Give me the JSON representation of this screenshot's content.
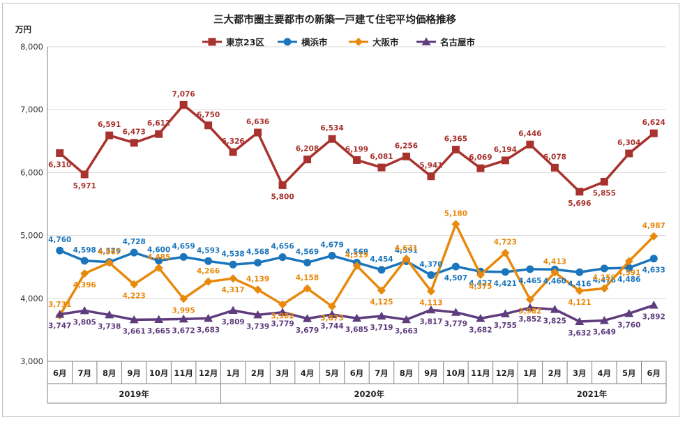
{
  "chart_data": {
    "type": "line",
    "title": "三大都市圏主要都市の新築一戸建て住宅平均価格推移",
    "y_unit": "万円",
    "ylim": [
      3000,
      8000
    ],
    "y_ticks": [
      "3,000",
      "4,000",
      "5,000",
      "6,000",
      "7,000",
      "8,000"
    ],
    "categories": [
      "6月",
      "7月",
      "8月",
      "9月",
      "10月",
      "11月",
      "12月",
      "1月",
      "2月",
      "3月",
      "4月",
      "5月",
      "6月",
      "7月",
      "8月",
      "9月",
      "10月",
      "11月",
      "12月",
      "1月",
      "2月",
      "3月",
      "4月",
      "5月",
      "6月"
    ],
    "year_groups": [
      {
        "label": "2019年",
        "start": 0,
        "end": 6
      },
      {
        "label": "2020年",
        "start": 7,
        "end": 18
      },
      {
        "label": "2021年",
        "start": 19,
        "end": 24
      }
    ],
    "legend_position": "top",
    "grid": "horizontal",
    "series": [
      {
        "name": "東京23区",
        "color": "#A8322D",
        "marker": "square",
        "values": [
          6310,
          5971,
          6591,
          6473,
          6612,
          7076,
          6750,
          6326,
          6636,
          5800,
          6208,
          6534,
          6199,
          6081,
          6256,
          5941,
          6365,
          6069,
          6194,
          6446,
          6078,
          5696,
          5855,
          6304,
          6624
        ],
        "labels": [
          "6,310",
          "5,971",
          "6,591",
          "6,473",
          "6,612",
          "7,076",
          "6,750",
          "6,326",
          "6,636",
          "5,800",
          "6,208",
          "6,534",
          "6,199",
          "6,081",
          "6,256",
          "5,941",
          "6,365",
          "6,069",
          "6,194",
          "6,446",
          "6,078",
          "5,696",
          "5,855",
          "6,304",
          "6,624"
        ]
      },
      {
        "name": "横浜市",
        "color": "#1B75BC",
        "marker": "circle",
        "values": [
          4760,
          4598,
          4579,
          4728,
          4600,
          4659,
          4593,
          4538,
          4568,
          4656,
          4569,
          4679,
          4569,
          4454,
          4591,
          4370,
          4507,
          4427,
          4421,
          4465,
          4460,
          4416,
          4476,
          4486,
          4633
        ],
        "labels": [
          "4,760",
          "4,598",
          "4,579",
          "4,728",
          "4,600",
          "4,659",
          "4,593",
          "4,538",
          "4,568",
          "4,656",
          "4,569",
          "4,679",
          "4,569",
          "4,454",
          "4,591",
          "4,370",
          "4,507",
          "4,427",
          "4,421",
          "4,465",
          "4,460",
          "4,416",
          "4,476",
          "4,486",
          "4,633"
        ]
      },
      {
        "name": "大阪市",
        "color": "#E8890C",
        "marker": "diamond",
        "values": [
          3731,
          4396,
          4567,
          4223,
          4485,
          3995,
          4266,
          4317,
          4139,
          3902,
          4158,
          3873,
          4519,
          4125,
          4631,
          4113,
          5180,
          4375,
          4723,
          3982,
          4413,
          4121,
          4159,
          4591,
          4987
        ],
        "labels": [
          "3,731",
          "4,396",
          "4,567",
          "4,223",
          "4,485",
          "3,995",
          "4,266",
          "4,317",
          "4,139",
          "3,902",
          "4,158",
          "3,873",
          "4,519",
          "4,125",
          "4,631",
          "4,113",
          "5,180",
          "4,375",
          "4,723",
          "3,982",
          "4,413",
          "4,121",
          "4,159",
          "4,591",
          "4,987"
        ]
      },
      {
        "name": "名古屋市",
        "color": "#5E3C7E",
        "marker": "triangle",
        "values": [
          3747,
          3805,
          3738,
          3661,
          3665,
          3672,
          3683,
          3809,
          3739,
          3779,
          3679,
          3744,
          3685,
          3719,
          3663,
          3817,
          3779,
          3682,
          3755,
          3852,
          3825,
          3632,
          3649,
          3760,
          3892
        ],
        "labels": [
          "3,747",
          "3,805",
          "3,738",
          "3,661",
          "3,665",
          "3,672",
          "3,683",
          "3,809",
          "3,739",
          "3,779",
          "3,679",
          "3,744",
          "3,685",
          "3,719",
          "3,663",
          "3,817",
          "3,779",
          "3,682",
          "3,755",
          "3,852",
          "3,825",
          "3,632",
          "3,649",
          "3,760",
          "3,892"
        ]
      }
    ]
  }
}
